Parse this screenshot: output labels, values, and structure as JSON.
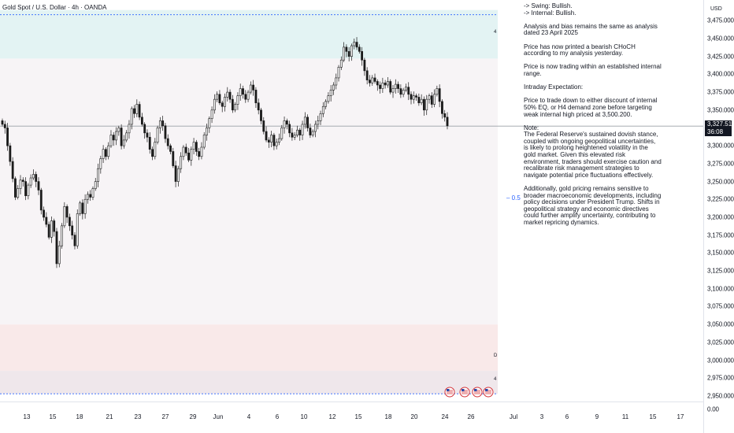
{
  "title": "Gold Spot / U.S. Dollar · 4h · OANDA",
  "price_axis": {
    "unit": "USD",
    "current_price": "3,327.515",
    "countdown": "36:08",
    "ticks": [
      "3,475.000",
      "3,450.000",
      "3,425.000",
      "3,400.000",
      "3,375.000",
      "3,350.000",
      "3,300.000",
      "3,275.000",
      "3,250.000",
      "3,225.000",
      "3,200.000",
      "3,175.000",
      "3,150.000",
      "3,125.000",
      "3,100.000",
      "3,075.000",
      "3,050.000",
      "3,025.000",
      "3,000.000",
      "2,975.000",
      "2,950.000",
      "0.00"
    ]
  },
  "time_axis": {
    "ticks": [
      "13",
      "15",
      "18",
      "21",
      "23",
      "27",
      "29",
      "Jun",
      "4",
      "6",
      "10",
      "12",
      "15",
      "18",
      "20",
      "24",
      "26",
      "Jul",
      "3",
      "6",
      "9",
      "11",
      "15",
      "17"
    ]
  },
  "analysis": [
    "-> Swing:  Bullish.\n-> Internal:  Bullish.",
    "Analysis and bias remains the same as analysis dated 23 April 2025",
    "Price has now printed a bearish CHoCH according to my analysis yesterday.",
    "Price is now trading within an established internal range.",
    "Intraday Expectation:",
    "Price to trade down to either discount of internal 50% EQ, or H4 demand zone before targeting weak internal high priced at 3,500.200.",
    "Note:\nThe Federal Reserve's sustained dovish stance, coupled with ongoing geopolitical uncertainties, is likely to prolong heightened volatility in the gold market. Given this elevated risk environment, traders should exercise caution and recalibrate risk management strategies to navigate potential price fluctuations effectively.",
    "Additionally, gold pricing remains sensitive to broader macroeconomic developments, including policy decisions under President Trump. Shifts in geopolitical strategy and economic directives could further amplify uncertainty, contributing to market repricing dynamics."
  ],
  "fib_label": "0.5",
  "zone_markers": [
    "4",
    "D",
    "4"
  ],
  "colors": {
    "up": "#1a1a1a",
    "down": "#1a1a1a",
    "supply_zone": "#e3f3f3",
    "range_zone": "#f7f4f6",
    "demand_zone": "#f9e9e9",
    "demand_zone_lower": "#efe7eb",
    "price_line": "#9aa0a6",
    "label_bg": "#131722"
  },
  "chart_data": {
    "type": "candlestick",
    "title": "Gold Spot / U.S. Dollar · 4h · OANDA",
    "ylabel": "USD",
    "ylim": [
      2940,
      3490
    ],
    "current_price": 3327.515,
    "zones": [
      {
        "name": "supply",
        "from": 3422,
        "to": 3490
      },
      {
        "name": "range",
        "from": 3050,
        "to": 3422
      },
      {
        "name": "demand",
        "from": 2985,
        "to": 3050
      },
      {
        "name": "demand_lower",
        "from": 2953,
        "to": 2985
      }
    ],
    "candles_close": [
      3330,
      3325,
      3300,
      3278,
      3254,
      3228,
      3240,
      3252,
      3250,
      3230,
      3245,
      3255,
      3260,
      3250,
      3238,
      3210,
      3200,
      3190,
      3172,
      3195,
      3180,
      3135,
      3160,
      3188,
      3215,
      3200,
      3188,
      3175,
      3160,
      3205,
      3220,
      3205,
      3225,
      3232,
      3228,
      3240,
      3250,
      3268,
      3282,
      3295,
      3285,
      3300,
      3315,
      3308,
      3320,
      3325,
      3300,
      3308,
      3318,
      3330,
      3352,
      3345,
      3358,
      3340,
      3330,
      3318,
      3312,
      3295,
      3285,
      3305,
      3325,
      3335,
      3328,
      3310,
      3300,
      3292,
      3272,
      3250,
      3268,
      3285,
      3298,
      3290,
      3280,
      3295,
      3305,
      3292,
      3285,
      3298,
      3315,
      3325,
      3338,
      3350,
      3365,
      3372,
      3360,
      3355,
      3368,
      3375,
      3365,
      3350,
      3358,
      3370,
      3380,
      3372,
      3365,
      3375,
      3385,
      3378,
      3360,
      3350,
      3335,
      3320,
      3308,
      3305,
      3315,
      3300,
      3305,
      3310,
      3325,
      3335,
      3330,
      3318,
      3312,
      3315,
      3322,
      3315,
      3330,
      3340,
      3325,
      3315,
      3320,
      3330,
      3335,
      3345,
      3355,
      3362,
      3370,
      3378,
      3385,
      3395,
      3410,
      3420,
      3438,
      3432,
      3425,
      3440,
      3445,
      3438,
      3432,
      3420,
      3405,
      3392,
      3388,
      3395,
      3390,
      3385,
      3380,
      3388,
      3385,
      3390,
      3375,
      3380,
      3386,
      3380,
      3372,
      3378,
      3382,
      3372,
      3365,
      3370,
      3368,
      3360,
      3365,
      3350,
      3365,
      3370,
      3358,
      3372,
      3380,
      3362,
      3345,
      3340,
      3328
    ],
    "annotations": [
      "4",
      "D",
      "4",
      "0.5"
    ]
  }
}
